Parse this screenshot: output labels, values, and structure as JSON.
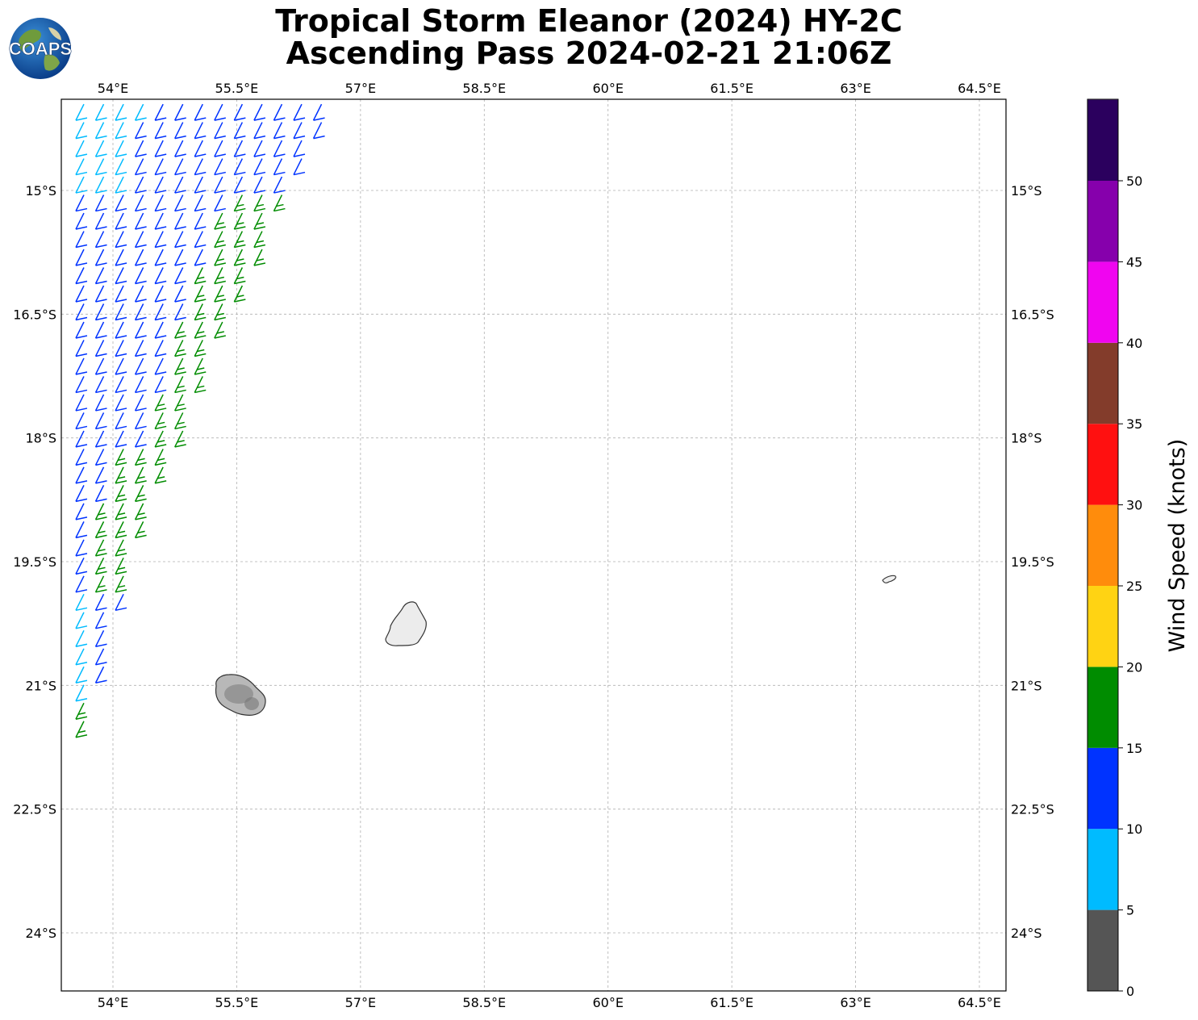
{
  "title": {
    "line1": "Tropical Storm Eleanor (2024) HY-2C",
    "line2": "Ascending Pass 2024-02-21 21:06Z"
  },
  "logo": {
    "text": "COAPS",
    "icon": "coaps-globe-logo"
  },
  "map": {
    "lon_range": [
      53.5,
      65.0
    ],
    "lat_range": [
      -25.0,
      -14.0
    ],
    "lon_ticks": [
      "54°E",
      "55.5°E",
      "57°E",
      "58.5°E",
      "60°E",
      "61.5°E",
      "63°E",
      "64.5°E"
    ],
    "lat_ticks": [
      "15°S",
      "16.5°S",
      "18°S",
      "19.5°S",
      "21°S",
      "22.5°S",
      "24°S"
    ],
    "gridlines": true,
    "islands": [
      "Réunion",
      "Mauritius",
      "Rodrigues"
    ]
  },
  "colorbar": {
    "label": "Wind Speed (knots)",
    "ticks": [
      "0",
      "5",
      "10",
      "15",
      "20",
      "25",
      "30",
      "35",
      "40",
      "45",
      "50"
    ],
    "bins": [
      {
        "from": 0,
        "to": 5,
        "color": "#555555"
      },
      {
        "from": 5,
        "to": 10,
        "color": "#00bbff"
      },
      {
        "from": 10,
        "to": 15,
        "color": "#0033ff"
      },
      {
        "from": 15,
        "to": 20,
        "color": "#008c00"
      },
      {
        "from": 20,
        "to": 25,
        "color": "#ffd313"
      },
      {
        "from": 25,
        "to": 30,
        "color": "#ff8c0c"
      },
      {
        "from": 30,
        "to": 35,
        "color": "#ff1010"
      },
      {
        "from": 35,
        "to": 40,
        "color": "#833c2b"
      },
      {
        "from": 40,
        "to": 45,
        "color": "#f005f0"
      },
      {
        "from": 45,
        "to": 50,
        "color": "#8600ac"
      },
      {
        "from": 50,
        "to": 55,
        "color": "#2b005e"
      }
    ]
  },
  "wind_barbs": {
    "description_units": "knots",
    "swath_edge_lon_at_lat": [
      [
        -14.0,
        56.7
      ],
      [
        -15.0,
        56.2
      ],
      [
        -16.5,
        55.4
      ],
      [
        -18.0,
        54.8
      ],
      [
        -19.5,
        54.2
      ],
      [
        -21.0,
        53.8
      ],
      [
        -21.7,
        53.6
      ]
    ],
    "zones": [
      {
        "lat_from": -14.0,
        "lat_to": -15.2,
        "speed_kt": 12,
        "edge_speed_kt": 8
      },
      {
        "lat_from": -15.2,
        "lat_to": -18.3,
        "speed_kt": 12,
        "east_speed_kt": 17
      },
      {
        "lat_from": -18.3,
        "lat_to": -20.0,
        "speed_kt": 17,
        "west_speed_kt": 12
      },
      {
        "lat_from": -20.0,
        "lat_to": -21.2,
        "speed_kt": 12,
        "west_speed_kt": 8
      },
      {
        "lat_from": -21.2,
        "lat_to": -21.8,
        "speed_kt": 17
      }
    ]
  }
}
